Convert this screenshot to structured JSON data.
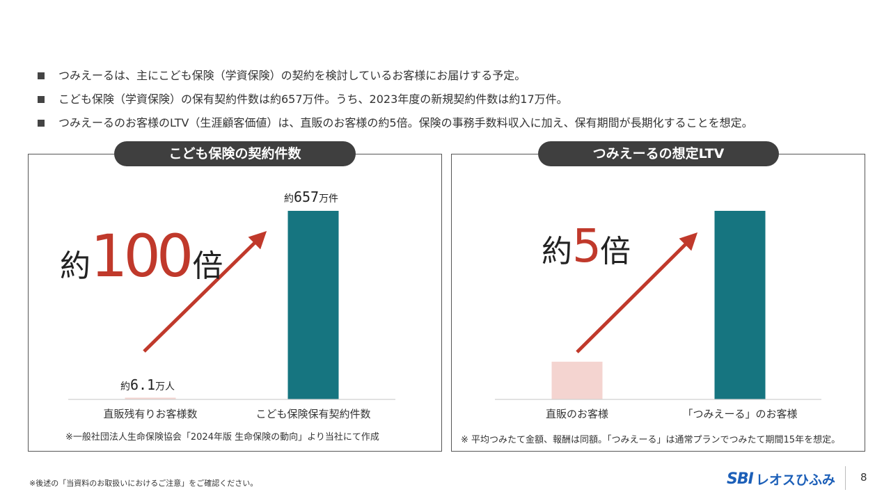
{
  "bullets": [
    "つみえーるは、主にこども保険（学資保険）の契約を検討しているお客様にお届けする予定。",
    "こども保険（学資保険）の保有契約件数は約657万件。うち、2023年度の新規契約件数は約17万件。",
    "つみえーるのお客様のLTV（生涯顧客価値）は、直販のお客様の約5倍。保険の事務手数料収入に加え、保有期間が長期化することを想定。"
  ],
  "left_panel": {
    "title": "こども保険の契約件数",
    "note": "※一般社団法人生命保険協会「2024年版 生命保険の動向」より当社にて作成",
    "multiplier": {
      "prefix": "約",
      "number": "100",
      "suffix": "倍"
    }
  },
  "right_panel": {
    "title": "つみえーるの想定LTV",
    "note": "※ 平均つみたて金額、報酬は同額。「つみえーる」は通常プランでつみたて期間15年を想定。",
    "multiplier": {
      "prefix": "約",
      "number": "5",
      "suffix": "倍"
    }
  },
  "chart_data": [
    {
      "type": "bar",
      "title": "こども保険の契約件数",
      "categories": [
        "直販残有りお客様数",
        "こども保険保有契約件数"
      ],
      "values": [
        6.1,
        657
      ],
      "unit": "万",
      "data_labels": [
        {
          "prefix": "約",
          "number": "6.1",
          "unit": "万人"
        },
        {
          "prefix": "約",
          "number": "657",
          "unit": "万件"
        }
      ],
      "bar_colors": [
        "#f4d4d0",
        "#167580"
      ],
      "ylim": [
        0,
        657
      ],
      "grid": false
    },
    {
      "type": "bar",
      "title": "つみえーるの想定LTV",
      "categories": [
        "直販のお客様",
        "「つみえーる」のお客様"
      ],
      "values": [
        1,
        5
      ],
      "bar_colors": [
        "#f4d4d0",
        "#167580"
      ],
      "ylim": [
        0,
        5
      ],
      "grid": false
    }
  ],
  "footer": {
    "note": "※後述の「当資料のお取扱いにおけるご注意」をご確認ください。",
    "logo_sbi": "SBI",
    "logo_name": "レオスひふみ",
    "page_number": "8"
  },
  "colors": {
    "accent": "#c0392b",
    "bar_main": "#167580",
    "bar_small": "#f4d4d0",
    "title_bg": "#3f3f3f"
  }
}
